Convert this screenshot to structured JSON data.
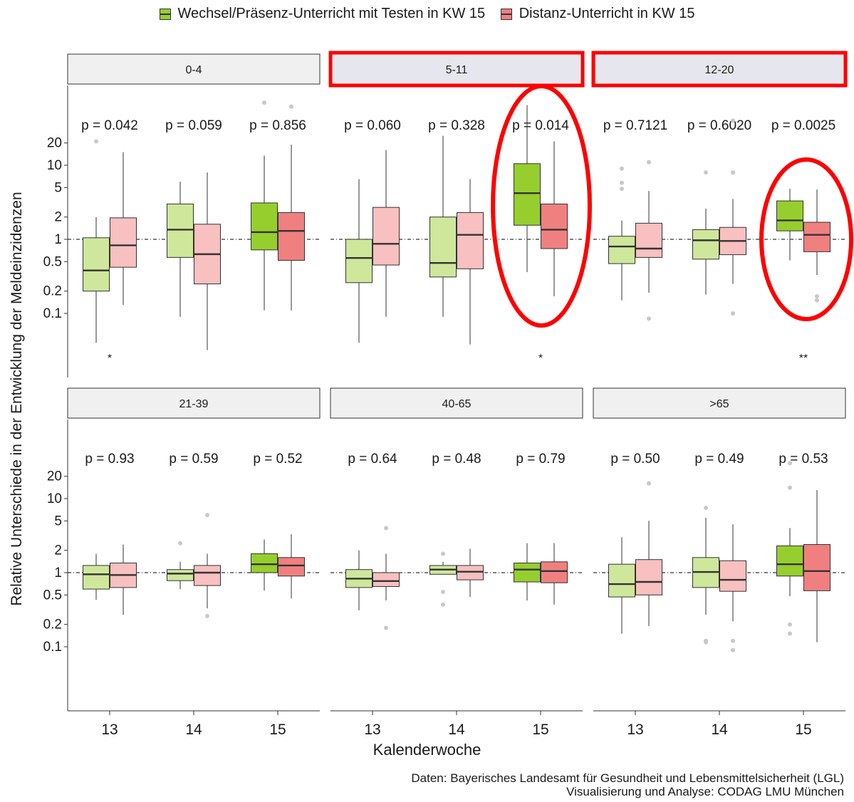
{
  "legend": {
    "items": [
      {
        "label": "Wechsel/Präsenz-Unterricht mit Testen in KW 15",
        "color": "#96ce2e"
      },
      {
        "label": "Distanz-Unterricht in KW 15",
        "color": "#f08080"
      }
    ]
  },
  "axes": {
    "ylabel": "Relative Unterschiede in der Entwicklung der Meldeinzidenzen",
    "xlabel": "Kalenderwoche"
  },
  "caption": {
    "line1": "Daten: Bayerisches Landesamt für Gesundheit und Lebensmittelsicherheit (LGL)",
    "line2": "Visualisierung und Analyse: CODAG LMU München"
  },
  "colors": {
    "green_dark": "#96ce2e",
    "green_light": "#cfe79b",
    "red_dark": "#f08080",
    "red_light": "#f8c0c0",
    "highlight": "#ff0000",
    "strip_default": "#f0f0f0",
    "strip_highlight": "#e6e6ee"
  },
  "chart_data": {
    "type": "boxplot",
    "scale": "log10",
    "yticks": [
      0.1,
      0.2,
      0.5,
      1,
      2,
      5,
      10,
      20
    ],
    "ytick_labels": [
      "0.1",
      "0.2",
      "0.5",
      "1",
      "2",
      "5",
      "10",
      "20"
    ],
    "reference_line": 1,
    "categories": [
      "13",
      "14",
      "15"
    ],
    "series": [
      {
        "name": "Wechsel/Präsenz-Unterricht mit Testen in KW 15"
      },
      {
        "name": "Distanz-Unterricht in KW 15"
      }
    ],
    "panels": [
      {
        "label": "0-4",
        "highlight": false,
        "pvalues": [
          "p = 0.042",
          "p = 0.059",
          "p = 0.856"
        ],
        "significance": [
          "*",
          "",
          ""
        ],
        "groups": [
          {
            "week": "13",
            "green": {
              "min": 0.04,
              "q1": 0.2,
              "med": 0.38,
              "q3": 1.05,
              "max": 2.0,
              "out": [
                21
              ]
            },
            "red": {
              "min": 0.13,
              "q1": 0.42,
              "med": 0.83,
              "q3": 1.95,
              "max": 15,
              "out": []
            }
          },
          {
            "week": "14",
            "green": {
              "min": 0.09,
              "q1": 0.57,
              "med": 1.35,
              "q3": 3.0,
              "max": 6.0,
              "out": []
            },
            "red": {
              "min": 0.032,
              "q1": 0.25,
              "med": 0.63,
              "q3": 1.6,
              "max": 8.0,
              "out": []
            }
          },
          {
            "week": "15",
            "green": {
              "min": 0.11,
              "q1": 0.72,
              "med": 1.25,
              "q3": 3.1,
              "max": 13.5,
              "out": [
                70
              ]
            },
            "red": {
              "min": 0.11,
              "q1": 0.52,
              "med": 1.3,
              "q3": 2.3,
              "max": 19,
              "out": [
                62
              ]
            }
          }
        ]
      },
      {
        "label": "5-11",
        "highlight": true,
        "pvalues": [
          "p = 0.060",
          "p = 0.328",
          "p = 0.014"
        ],
        "significance": [
          "",
          "",
          "*"
        ],
        "groups": [
          {
            "week": "13",
            "green": {
              "min": 0.04,
              "q1": 0.26,
              "med": 0.56,
              "q3": 1.0,
              "max": 6.5,
              "out": []
            },
            "red": {
              "min": 0.09,
              "q1": 0.45,
              "med": 0.87,
              "q3": 2.7,
              "max": 16,
              "out": []
            }
          },
          {
            "week": "14",
            "green": {
              "min": 0.09,
              "q1": 0.31,
              "med": 0.48,
              "q3": 2.0,
              "max": 25,
              "out": []
            },
            "red": {
              "min": 0.038,
              "q1": 0.4,
              "med": 1.15,
              "q3": 2.3,
              "max": 6.5,
              "out": []
            }
          },
          {
            "week": "15",
            "green": {
              "min": 0.36,
              "q1": 1.55,
              "med": 4.2,
              "q3": 10.5,
              "max": 65,
              "out": []
            },
            "red": {
              "min": 0.17,
              "q1": 0.75,
              "med": 1.35,
              "q3": 3.0,
              "max": 21,
              "out": []
            }
          }
        ]
      },
      {
        "label": "12-20",
        "highlight": true,
        "pvalues": [
          "p = 0.7121",
          "p = 0.6020",
          "p = 0.0025"
        ],
        "significance": [
          "",
          "",
          "**"
        ],
        "groups": [
          {
            "week": "13",
            "green": {
              "min": 0.15,
              "q1": 0.47,
              "med": 0.8,
              "q3": 1.1,
              "max": 1.8,
              "out": [
                4.8,
                5.8,
                9.0
              ]
            },
            "red": {
              "min": 0.19,
              "q1": 0.57,
              "med": 0.75,
              "q3": 1.65,
              "max": 4.5,
              "out": [
                11,
                0.085
              ]
            }
          },
          {
            "week": "14",
            "green": {
              "min": 0.18,
              "q1": 0.54,
              "med": 0.97,
              "q3": 1.35,
              "max": 2.6,
              "out": [
                8.0
              ]
            },
            "red": {
              "min": 0.25,
              "q1": 0.62,
              "med": 0.95,
              "q3": 1.45,
              "max": 3.5,
              "out": [
                8.0,
                0.1,
                40
              ]
            }
          },
          {
            "week": "15",
            "green": {
              "min": 0.52,
              "q1": 1.3,
              "med": 1.8,
              "q3": 3.3,
              "max": 4.8,
              "out": []
            },
            "red": {
              "min": 0.33,
              "q1": 0.68,
              "med": 1.15,
              "q3": 1.7,
              "max": 4.7,
              "out": [
                0.15,
                0.17
              ]
            }
          }
        ]
      },
      {
        "label": "21-39",
        "highlight": false,
        "pvalues": [
          "p = 0.93",
          "p = 0.59",
          "p = 0.52"
        ],
        "significance": [
          "",
          "",
          ""
        ],
        "groups": [
          {
            "week": "13",
            "green": {
              "min": 0.43,
              "q1": 0.6,
              "med": 0.95,
              "q3": 1.25,
              "max": 1.8,
              "out": []
            },
            "red": {
              "min": 0.27,
              "q1": 0.63,
              "med": 0.93,
              "q3": 1.35,
              "max": 2.4,
              "out": []
            }
          },
          {
            "week": "14",
            "green": {
              "min": 0.6,
              "q1": 0.78,
              "med": 0.97,
              "q3": 1.1,
              "max": 1.4,
              "out": [
                2.5
              ]
            },
            "red": {
              "min": 0.33,
              "q1": 0.67,
              "med": 1.0,
              "q3": 1.25,
              "max": 1.8,
              "out": [
                0.26,
                6.0
              ]
            }
          },
          {
            "week": "15",
            "green": {
              "min": 0.57,
              "q1": 1.0,
              "med": 1.3,
              "q3": 1.8,
              "max": 2.8,
              "out": []
            },
            "red": {
              "min": 0.45,
              "q1": 0.9,
              "med": 1.25,
              "q3": 1.6,
              "max": 3.3,
              "out": []
            }
          }
        ]
      },
      {
        "label": "40-65",
        "highlight": false,
        "pvalues": [
          "p = 0.64",
          "p = 0.48",
          "p = 0.79"
        ],
        "significance": [
          "",
          "",
          ""
        ],
        "groups": [
          {
            "week": "13",
            "green": {
              "min": 0.31,
              "q1": 0.63,
              "med": 0.83,
              "q3": 1.1,
              "max": 2.0,
              "out": []
            },
            "red": {
              "min": 0.42,
              "q1": 0.65,
              "med": 0.77,
              "q3": 1.0,
              "max": 1.8,
              "out": [
                0.18,
                4.0
              ]
            }
          },
          {
            "week": "14",
            "green": {
              "min": 0.95,
              "q1": 0.95,
              "med": 1.1,
              "q3": 1.25,
              "max": 1.4,
              "out": [
                0.37,
                0.55,
                1.8
              ]
            },
            "red": {
              "min": 0.47,
              "q1": 0.8,
              "med": 1.03,
              "q3": 1.25,
              "max": 2.1,
              "out": []
            }
          },
          {
            "week": "15",
            "green": {
              "min": 0.42,
              "q1": 0.75,
              "med": 1.1,
              "q3": 1.35,
              "max": 2.5,
              "out": []
            },
            "red": {
              "min": 0.37,
              "q1": 0.73,
              "med": 1.05,
              "q3": 1.4,
              "max": 2.5,
              "out": []
            }
          }
        ]
      },
      {
        "label": ">65",
        "highlight": false,
        "pvalues": [
          "p = 0.50",
          "p = 0.49",
          "p = 0.53"
        ],
        "significance": [
          "",
          "",
          ""
        ],
        "groups": [
          {
            "week": "13",
            "green": {
              "min": 0.15,
              "q1": 0.47,
              "med": 0.7,
              "q3": 1.3,
              "max": 3.0,
              "out": []
            },
            "red": {
              "min": 0.19,
              "q1": 0.5,
              "med": 0.75,
              "q3": 1.5,
              "max": 5.0,
              "out": [
                16
              ]
            }
          },
          {
            "week": "14",
            "green": {
              "min": 0.27,
              "q1": 0.63,
              "med": 1.02,
              "q3": 1.6,
              "max": 5.5,
              "out": [
                0.115,
                0.12,
                7.5
              ]
            },
            "red": {
              "min": 0.22,
              "q1": 0.56,
              "med": 0.8,
              "q3": 1.45,
              "max": 4.5,
              "out": [
                0.09,
                0.12
              ]
            }
          },
          {
            "week": "15",
            "green": {
              "min": 0.48,
              "q1": 0.9,
              "med": 1.3,
              "q3": 2.3,
              "max": 4.0,
              "out": [
                0.15,
                0.2,
                14,
                30
              ]
            },
            "red": {
              "min": 0.115,
              "q1": 0.57,
              "med": 1.05,
              "q3": 2.4,
              "max": 13,
              "out": []
            }
          }
        ]
      }
    ],
    "callouts": [
      {
        "panel": "5-11",
        "week": "15",
        "kind": "ellipse"
      },
      {
        "panel": "12-20",
        "week": "15",
        "kind": "ellipse"
      }
    ]
  }
}
